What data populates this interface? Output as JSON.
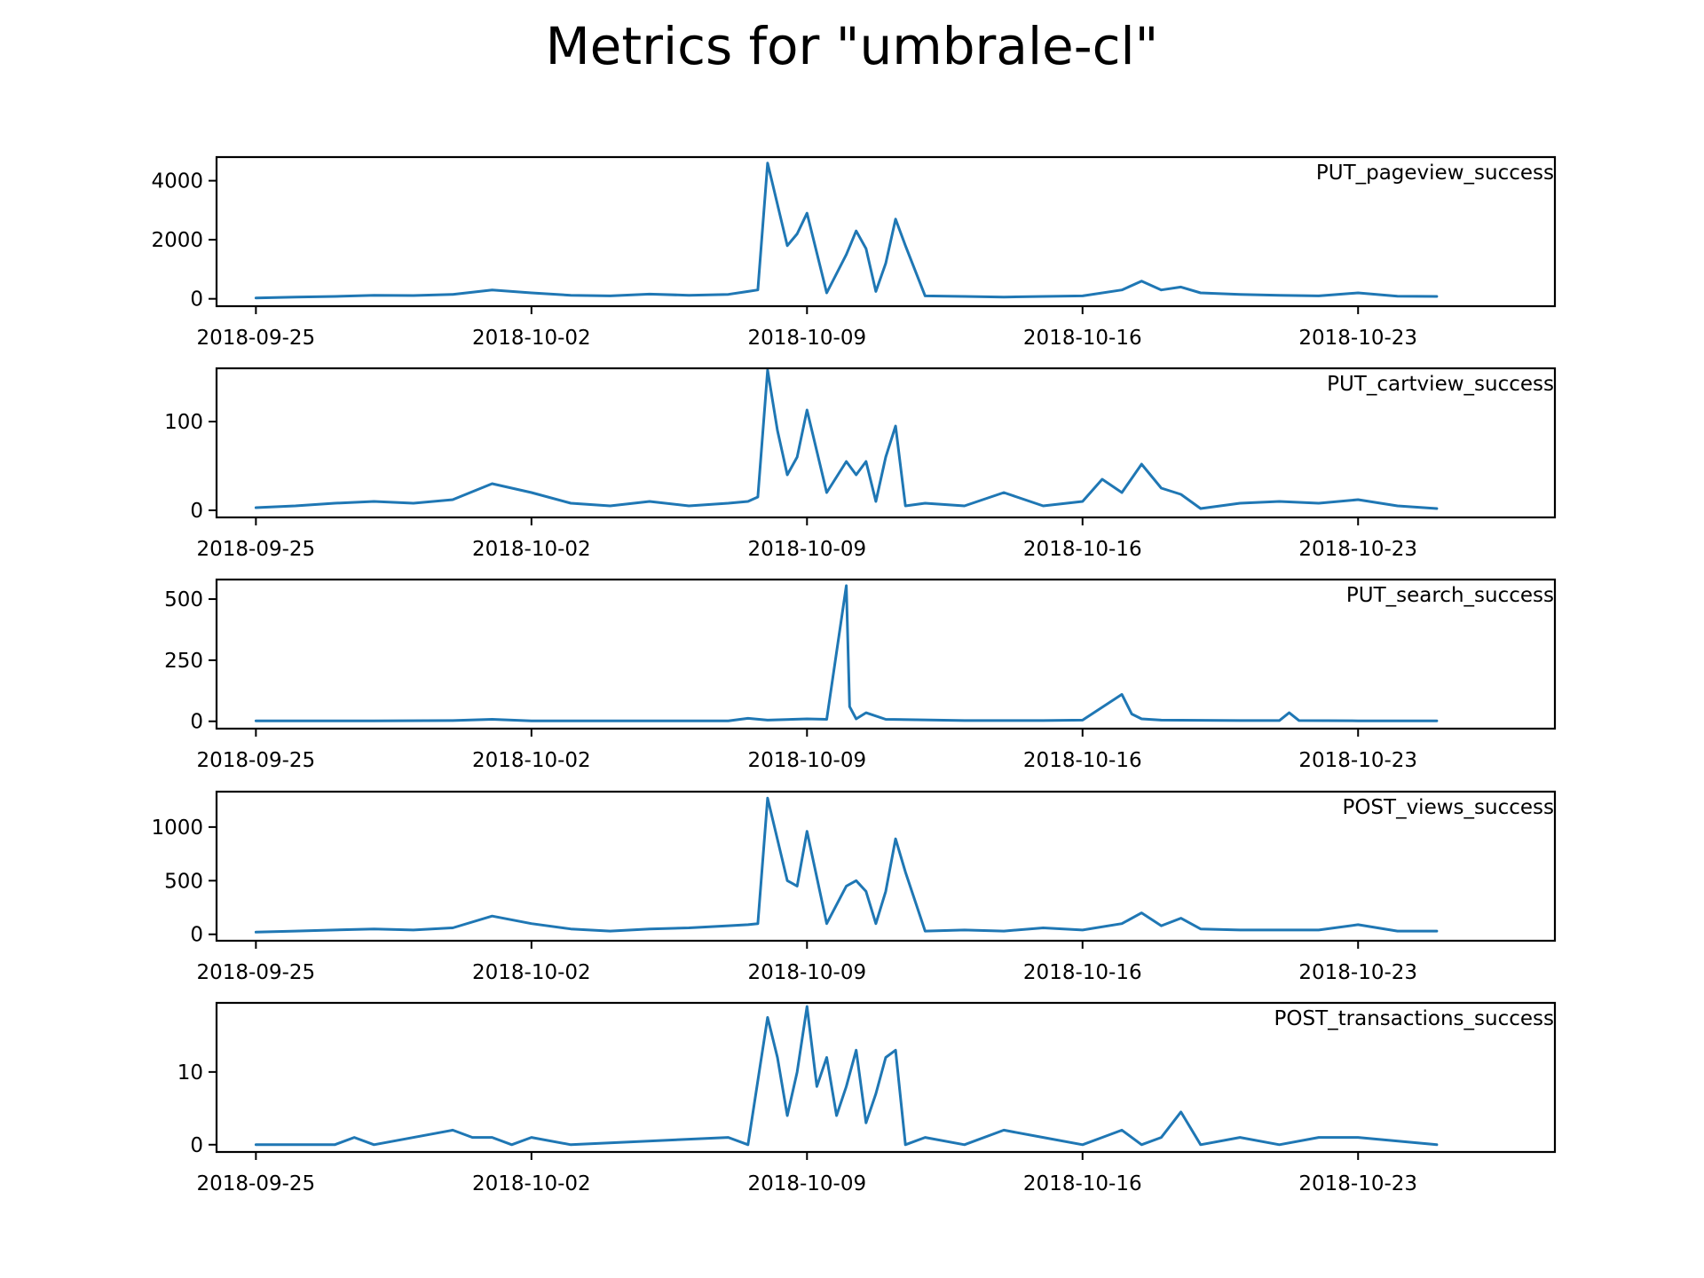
{
  "figure": {
    "title": "Metrics for \"umbrale-cl\""
  },
  "chart_data": [
    {
      "type": "line",
      "title": "PUT_pageview_success",
      "xlabel": "",
      "ylabel": "",
      "x_range": [
        "2018-09-24",
        "2018-10-28"
      ],
      "xticks": [
        "2018-09-25",
        "2018-10-02",
        "2018-10-09",
        "2018-10-16",
        "2018-10-23"
      ],
      "ylim": [
        -250,
        4800
      ],
      "yticks": [
        0,
        2000,
        4000
      ],
      "grid": false,
      "color": "#1f77b4",
      "series": [
        {
          "x": [
            "2018-09-25",
            "2018-09-26",
            "2018-09-27",
            "2018-09-28",
            "2018-09-29",
            "2018-09-30",
            "2018-10-01",
            "2018-10-02",
            "2018-10-03",
            "2018-10-04",
            "2018-10-05",
            "2018-10-06",
            "2018-10-07",
            "2018-10-07 12:00",
            "2018-10-07 18:00",
            "2018-10-08",
            "2018-10-08 12:00",
            "2018-10-08 18:00",
            "2018-10-09",
            "2018-10-09 12:00",
            "2018-10-10",
            "2018-10-10 06:00",
            "2018-10-10 12:00",
            "2018-10-10 18:00",
            "2018-10-11",
            "2018-10-11 06:00",
            "2018-10-11 12:00",
            "2018-10-12",
            "2018-10-13",
            "2018-10-14",
            "2018-10-15",
            "2018-10-16",
            "2018-10-17",
            "2018-10-17 12:00",
            "2018-10-18",
            "2018-10-18 12:00",
            "2018-10-19",
            "2018-10-20",
            "2018-10-21",
            "2018-10-22",
            "2018-10-23",
            "2018-10-24",
            "2018-10-25"
          ],
          "y": [
            30,
            60,
            80,
            120,
            110,
            150,
            300,
            200,
            120,
            100,
            160,
            120,
            150,
            250,
            300,
            4600,
            1800,
            2200,
            2900,
            200,
            1500,
            2300,
            1700,
            250,
            1200,
            2700,
            1800,
            100,
            80,
            60,
            80,
            100,
            300,
            600,
            300,
            400,
            200,
            150,
            120,
            100,
            200,
            90,
            80
          ]
        }
      ]
    },
    {
      "type": "line",
      "title": "PUT_cartview_success",
      "xlabel": "",
      "ylabel": "",
      "x_range": [
        "2018-09-24",
        "2018-10-28"
      ],
      "xticks": [
        "2018-09-25",
        "2018-10-02",
        "2018-10-09",
        "2018-10-16",
        "2018-10-23"
      ],
      "ylim": [
        -8,
        160
      ],
      "yticks": [
        0,
        100
      ],
      "grid": false,
      "color": "#1f77b4",
      "series": [
        {
          "x": [
            "2018-09-25",
            "2018-09-26",
            "2018-09-27",
            "2018-09-28",
            "2018-09-29",
            "2018-09-30",
            "2018-10-01",
            "2018-10-02",
            "2018-10-03",
            "2018-10-04",
            "2018-10-05",
            "2018-10-06",
            "2018-10-07",
            "2018-10-07 12:00",
            "2018-10-07 18:00",
            "2018-10-08",
            "2018-10-08 06:00",
            "2018-10-08 12:00",
            "2018-10-08 18:00",
            "2018-10-09",
            "2018-10-09 12:00",
            "2018-10-10",
            "2018-10-10 06:00",
            "2018-10-10 12:00",
            "2018-10-10 18:00",
            "2018-10-11",
            "2018-10-11 06:00",
            "2018-10-11 12:00",
            "2018-10-12",
            "2018-10-13",
            "2018-10-14",
            "2018-10-15",
            "2018-10-16",
            "2018-10-16 12:00",
            "2018-10-17",
            "2018-10-17 12:00",
            "2018-10-18",
            "2018-10-18 12:00",
            "2018-10-19",
            "2018-10-20",
            "2018-10-21",
            "2018-10-22",
            "2018-10-23",
            "2018-10-24",
            "2018-10-25"
          ],
          "y": [
            3,
            5,
            8,
            10,
            8,
            12,
            30,
            20,
            8,
            5,
            10,
            5,
            8,
            10,
            15,
            158,
            90,
            40,
            60,
            113,
            20,
            55,
            40,
            55,
            10,
            60,
            95,
            5,
            8,
            5,
            20,
            5,
            10,
            35,
            20,
            52,
            25,
            18,
            2,
            8,
            10,
            8,
            12,
            5,
            2
          ]
        }
      ]
    },
    {
      "type": "line",
      "title": "PUT_search_success",
      "xlabel": "",
      "ylabel": "",
      "x_range": [
        "2018-09-24",
        "2018-10-28"
      ],
      "xticks": [
        "2018-09-25",
        "2018-10-02",
        "2018-10-09",
        "2018-10-16",
        "2018-10-23"
      ],
      "ylim": [
        -30,
        580
      ],
      "yticks": [
        0,
        250,
        500
      ],
      "grid": false,
      "color": "#1f77b4",
      "series": [
        {
          "x": [
            "2018-09-25",
            "2018-09-28",
            "2018-09-30",
            "2018-10-01",
            "2018-10-02",
            "2018-10-05",
            "2018-10-07",
            "2018-10-07 12:00",
            "2018-10-08",
            "2018-10-09",
            "2018-10-09 12:00",
            "2018-10-10",
            "2018-10-10 02:00",
            "2018-10-10 06:00",
            "2018-10-10 12:00",
            "2018-10-11",
            "2018-10-13",
            "2018-10-15",
            "2018-10-16",
            "2018-10-17",
            "2018-10-17 06:00",
            "2018-10-17 12:00",
            "2018-10-18",
            "2018-10-20",
            "2018-10-21",
            "2018-10-21 06:00",
            "2018-10-21 12:00",
            "2018-10-23",
            "2018-10-25"
          ],
          "y": [
            2,
            2,
            3,
            8,
            2,
            2,
            2,
            12,
            5,
            10,
            8,
            555,
            60,
            10,
            35,
            8,
            3,
            3,
            5,
            110,
            30,
            10,
            5,
            3,
            3,
            35,
            3,
            2,
            2
          ]
        }
      ]
    },
    {
      "type": "line",
      "title": "POST_views_success",
      "xlabel": "",
      "ylabel": "",
      "x_range": [
        "2018-09-24",
        "2018-10-28"
      ],
      "xticks": [
        "2018-09-25",
        "2018-10-02",
        "2018-10-09",
        "2018-10-16",
        "2018-10-23"
      ],
      "ylim": [
        -60,
        1330
      ],
      "yticks": [
        0,
        500,
        1000
      ],
      "grid": false,
      "color": "#1f77b4",
      "series": [
        {
          "x": [
            "2018-09-25",
            "2018-09-26",
            "2018-09-27",
            "2018-09-28",
            "2018-09-29",
            "2018-09-30",
            "2018-10-01",
            "2018-10-02",
            "2018-10-03",
            "2018-10-04",
            "2018-10-05",
            "2018-10-06",
            "2018-10-07",
            "2018-10-07 12:00",
            "2018-10-07 18:00",
            "2018-10-08",
            "2018-10-08 12:00",
            "2018-10-08 18:00",
            "2018-10-09",
            "2018-10-09 12:00",
            "2018-10-10",
            "2018-10-10 06:00",
            "2018-10-10 12:00",
            "2018-10-10 18:00",
            "2018-10-11",
            "2018-10-11 06:00",
            "2018-10-11 12:00",
            "2018-10-12",
            "2018-10-13",
            "2018-10-14",
            "2018-10-15",
            "2018-10-16",
            "2018-10-17",
            "2018-10-17 12:00",
            "2018-10-18",
            "2018-10-18 12:00",
            "2018-10-19",
            "2018-10-20",
            "2018-10-21",
            "2018-10-22",
            "2018-10-23",
            "2018-10-24",
            "2018-10-25"
          ],
          "y": [
            20,
            30,
            40,
            50,
            40,
            60,
            170,
            100,
            50,
            30,
            50,
            60,
            80,
            90,
            100,
            1270,
            500,
            450,
            960,
            100,
            450,
            500,
            400,
            100,
            400,
            890,
            580,
            30,
            40,
            30,
            60,
            40,
            100,
            200,
            80,
            150,
            50,
            40,
            40,
            40,
            90,
            30,
            30
          ]
        }
      ]
    },
    {
      "type": "line",
      "title": "POST_transactions_success",
      "xlabel": "",
      "ylabel": "",
      "x_range": [
        "2018-09-24",
        "2018-10-28"
      ],
      "xticks": [
        "2018-09-25",
        "2018-10-02",
        "2018-10-09",
        "2018-10-16",
        "2018-10-23"
      ],
      "ylim": [
        -1,
        19.5
      ],
      "yticks": [
        0,
        10
      ],
      "grid": false,
      "color": "#1f77b4",
      "series": [
        {
          "x": [
            "2018-09-25",
            "2018-09-27",
            "2018-09-27 12:00",
            "2018-09-28",
            "2018-09-30",
            "2018-09-30 12:00",
            "2018-10-01",
            "2018-10-01 12:00",
            "2018-10-02",
            "2018-10-03",
            "2018-10-07",
            "2018-10-07 12:00",
            "2018-10-08",
            "2018-10-08 06:00",
            "2018-10-08 12:00",
            "2018-10-08 18:00",
            "2018-10-09",
            "2018-10-09 06:00",
            "2018-10-09 12:00",
            "2018-10-09 18:00",
            "2018-10-10",
            "2018-10-10 06:00",
            "2018-10-10 12:00",
            "2018-10-10 18:00",
            "2018-10-11",
            "2018-10-11 06:00",
            "2018-10-11 12:00",
            "2018-10-12",
            "2018-10-13",
            "2018-10-14",
            "2018-10-15",
            "2018-10-16",
            "2018-10-16 12:00",
            "2018-10-17",
            "2018-10-17 12:00",
            "2018-10-18",
            "2018-10-18 12:00",
            "2018-10-19",
            "2018-10-20",
            "2018-10-21",
            "2018-10-22",
            "2018-10-23",
            "2018-10-25"
          ],
          "y": [
            0,
            0,
            1,
            0,
            2,
            1,
            1,
            0,
            1,
            0,
            1,
            0,
            17.5,
            12,
            4,
            10,
            19,
            8,
            12,
            4,
            8,
            13,
            3,
            7,
            12,
            13,
            0,
            1,
            0,
            2,
            1,
            0,
            1,
            2,
            0,
            1,
            4.5,
            0,
            1,
            0,
            1,
            1,
            0
          ]
        }
      ]
    }
  ]
}
